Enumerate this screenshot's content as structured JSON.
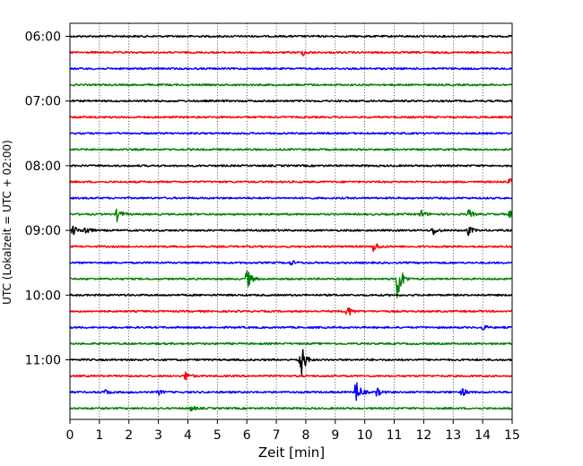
{
  "chart_data": {
    "type": "line",
    "title": "",
    "xlabel": "Zeit  [min]",
    "ylabel": "UTC (Lokalzeit = UTC + 02:00)",
    "xlim": [
      0,
      15
    ],
    "x_ticks": [
      "0",
      "1",
      "2",
      "3",
      "4",
      "5",
      "6",
      "7",
      "8",
      "9",
      "10",
      "11",
      "12",
      "13",
      "14",
      "15"
    ],
    "y_tick_labels": [
      {
        "label": "06:00",
        "trace": 0
      },
      {
        "label": "07:00",
        "trace": 4
      },
      {
        "label": "08:00",
        "trace": 8
      },
      {
        "label": "09:00",
        "trace": 12
      },
      {
        "label": "10:00",
        "trace": 16
      },
      {
        "label": "11:00",
        "trace": 20
      }
    ],
    "grid": "vertical dotted lines at each minute",
    "trace_colors": [
      "#000000",
      "#ff0000",
      "#0000ff",
      "#008000"
    ],
    "trace_interval_min": 15,
    "traces": [
      {
        "start": "06:00",
        "events": []
      },
      {
        "start": "06:15",
        "events": [
          {
            "t": 7.9,
            "amp": 0.3
          }
        ]
      },
      {
        "start": "06:30",
        "events": []
      },
      {
        "start": "06:45",
        "events": []
      },
      {
        "start": "07:00",
        "events": []
      },
      {
        "start": "07:15",
        "events": []
      },
      {
        "start": "07:30",
        "events": []
      },
      {
        "start": "07:45",
        "events": []
      },
      {
        "start": "08:00",
        "events": []
      },
      {
        "start": "08:15",
        "events": [
          {
            "t": 14.9,
            "amp": 0.4
          }
        ]
      },
      {
        "start": "08:30",
        "events": []
      },
      {
        "start": "08:45",
        "events": [
          {
            "t": 1.6,
            "amp": 0.8
          },
          {
            "t": 11.9,
            "amp": 0.5
          },
          {
            "t": 13.5,
            "amp": 0.6
          },
          {
            "t": 14.9,
            "amp": 0.4
          }
        ]
      },
      {
        "start": "09:00",
        "events": [
          {
            "t": 0.1,
            "amp": 0.6
          },
          {
            "t": 0.5,
            "amp": 0.6
          },
          {
            "t": 12.3,
            "amp": 0.6
          },
          {
            "t": 13.5,
            "amp": 0.6
          }
        ]
      },
      {
        "start": "09:15",
        "events": [
          {
            "t": 10.3,
            "amp": 0.7
          }
        ]
      },
      {
        "start": "09:30",
        "events": [
          {
            "t": 7.5,
            "amp": 0.3
          }
        ]
      },
      {
        "start": "09:45",
        "events": [
          {
            "t": 6.0,
            "amp": 1.3
          },
          {
            "t": 11.1,
            "amp": 3.0
          }
        ]
      },
      {
        "start": "10:00",
        "events": []
      },
      {
        "start": "10:15",
        "events": [
          {
            "t": 9.4,
            "amp": 0.8
          }
        ]
      },
      {
        "start": "10:30",
        "events": [
          {
            "t": 14.0,
            "amp": 0.3
          }
        ]
      },
      {
        "start": "10:45",
        "events": []
      },
      {
        "start": "11:00",
        "events": [
          {
            "t": 7.8,
            "amp": 3.0
          }
        ]
      },
      {
        "start": "11:15",
        "events": [
          {
            "t": 3.9,
            "amp": 0.6
          }
        ]
      },
      {
        "start": "11:30",
        "events": [
          {
            "t": 1.2,
            "amp": 0.3
          },
          {
            "t": 3.0,
            "amp": 0.3
          },
          {
            "t": 9.7,
            "amp": 1.6
          },
          {
            "t": 10.4,
            "amp": 0.5
          },
          {
            "t": 13.3,
            "amp": 0.5
          }
        ]
      },
      {
        "start": "11:45",
        "events": [
          {
            "t": 4.1,
            "amp": 0.3
          }
        ]
      }
    ]
  }
}
